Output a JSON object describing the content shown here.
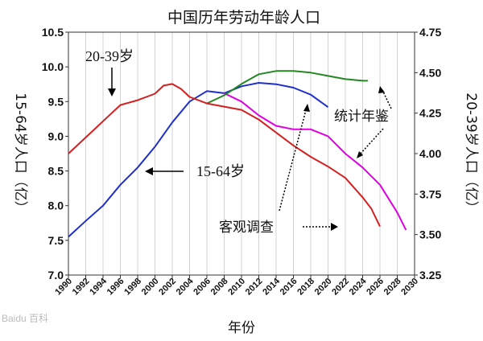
{
  "chart_data": {
    "type": "line",
    "title": "中国历年劳动年龄人口",
    "xlabel": "年份",
    "ylabel_left": "15-64岁人口（亿）",
    "ylabel_right": "20-39岁人口（亿）",
    "xlim": [
      1990,
      2030
    ],
    "ylim_left": [
      7.0,
      10.5
    ],
    "ylim_right": [
      3.25,
      4.75
    ],
    "x_ticks": [
      "1990",
      "1992",
      "1994",
      "1996",
      "1998",
      "2000",
      "2002",
      "2004",
      "2006",
      "2008",
      "2010",
      "2012",
      "2014",
      "2016",
      "2018",
      "2020",
      "2022",
      "2024",
      "2026",
      "2028",
      "2030"
    ],
    "y_ticks_left": [
      "7.0",
      "7.5",
      "8.0",
      "8.5",
      "9.0",
      "9.5",
      "10.0",
      "10.5"
    ],
    "y_ticks_right": [
      "3.25",
      "3.50",
      "3.75",
      "4.00",
      "4.25",
      "4.50",
      "4.75"
    ],
    "grid": "vertical",
    "series": [
      {
        "axis": "left",
        "color": "#1f2fcc",
        "points": [
          [
            1990,
            7.55
          ],
          [
            1992,
            7.78
          ],
          [
            1994,
            8.0
          ],
          [
            1996,
            8.3
          ],
          [
            1998,
            8.55
          ],
          [
            2000,
            8.85
          ],
          [
            2002,
            9.2
          ],
          [
            2004,
            9.5
          ],
          [
            2006,
            9.65
          ],
          [
            2008,
            9.62
          ]
        ]
      },
      {
        "axis": "left",
        "color": "#1f2fcc",
        "points": [
          [
            2008,
            9.62
          ],
          [
            2010,
            9.72
          ],
          [
            2012,
            9.77
          ],
          [
            2014,
            9.75
          ],
          [
            2016,
            9.7
          ],
          [
            2018,
            9.6
          ],
          [
            2020,
            9.42
          ]
        ]
      },
      {
        "axis": "left",
        "color": "#e000e0",
        "points": [
          [
            2008,
            9.62
          ],
          [
            2010,
            9.5
          ],
          [
            2012,
            9.3
          ],
          [
            2014,
            9.15
          ],
          [
            2016,
            9.1
          ],
          [
            2018,
            9.1
          ],
          [
            2020,
            9.0
          ],
          [
            2022,
            8.75
          ],
          [
            2024,
            8.55
          ],
          [
            2026,
            8.3
          ],
          [
            2028,
            7.9
          ],
          [
            2029,
            7.65
          ]
        ]
      },
      {
        "axis": "right",
        "color": "#238823",
        "points": [
          [
            2006,
            4.31
          ],
          [
            2008,
            4.36
          ],
          [
            2010,
            4.43
          ],
          [
            2012,
            4.49
          ],
          [
            2014,
            4.51
          ],
          [
            2016,
            4.51
          ],
          [
            2018,
            4.5
          ],
          [
            2020,
            4.48
          ],
          [
            2022,
            4.46
          ],
          [
            2024,
            4.45
          ],
          [
            2024.6,
            4.45
          ]
        ]
      },
      {
        "axis": "right",
        "color": "#d42020",
        "points": [
          [
            1990,
            4.0
          ],
          [
            1992,
            4.1
          ],
          [
            1994,
            4.2
          ],
          [
            1996,
            4.3
          ],
          [
            1998,
            4.33
          ],
          [
            2000,
            4.37
          ],
          [
            2001,
            4.42
          ],
          [
            2002,
            4.43
          ],
          [
            2003,
            4.4
          ],
          [
            2004,
            4.35
          ],
          [
            2006,
            4.31
          ],
          [
            2008,
            4.29
          ],
          [
            2010,
            4.27
          ],
          [
            2012,
            4.21
          ],
          [
            2014,
            4.13
          ],
          [
            2016,
            4.05
          ],
          [
            2018,
            3.98
          ],
          [
            2020,
            3.92
          ],
          [
            2022,
            3.85
          ],
          [
            2024,
            3.73
          ],
          [
            2025,
            3.66
          ],
          [
            2026,
            3.55
          ]
        ]
      }
    ],
    "annotations": {
      "series_20_39": "20-39岁",
      "series_15_64": "15-64岁",
      "stat_yearbook": "统计年鉴",
      "survey": "客观调查"
    }
  },
  "watermark": "Baidu 百科"
}
